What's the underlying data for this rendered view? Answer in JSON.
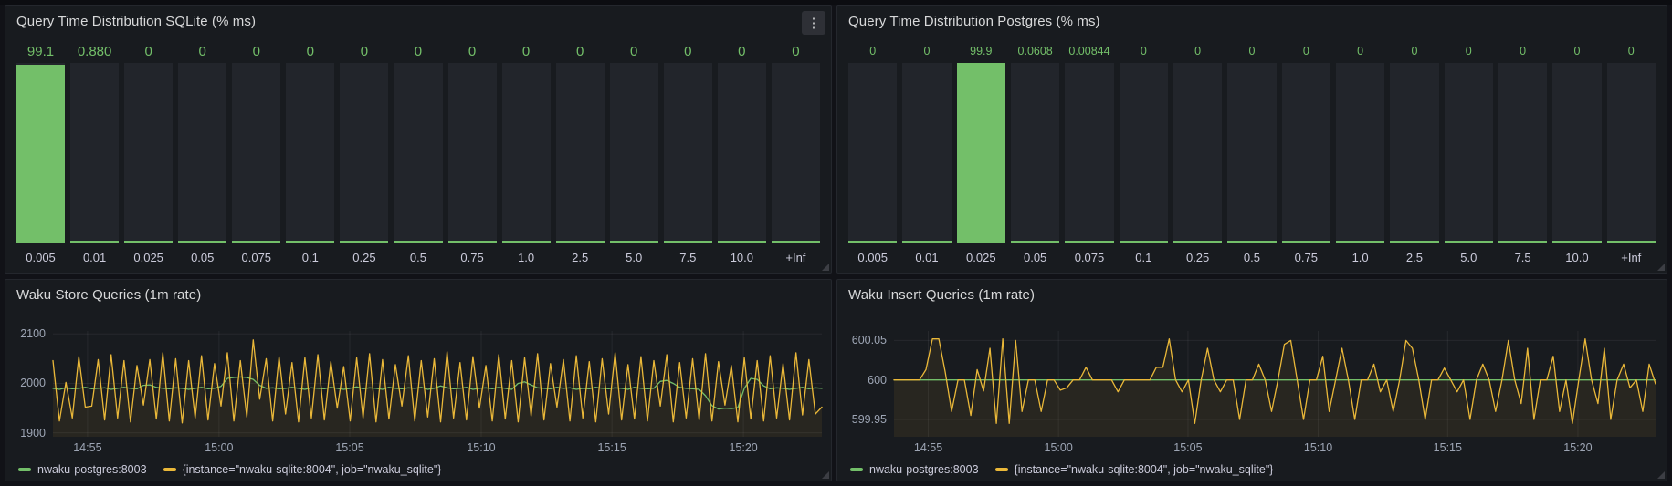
{
  "app": {
    "kebab_icon": "⋮"
  },
  "colors": {
    "page_bg": "#111217",
    "panel_bg": "#181b1f",
    "green": "#73bf69",
    "yellow": "#eab839",
    "track": "#22252b",
    "grid": "rgba(204,204,220,0.08)",
    "value_text": "#73bf69",
    "title_text": "#d8d9da",
    "tick_text": "#9da5b4"
  },
  "legend": {
    "items": [
      {
        "label": "nwaku-postgres:8003",
        "color": "#73bf69"
      },
      {
        "label": "{instance=\"nwaku-sqlite:8004\", job=\"nwaku_sqlite\"}",
        "color": "#eab839"
      }
    ]
  },
  "chart_data": [
    {
      "type": "bar",
      "title": "Query Time Distribution SQLite (% ms)",
      "xlabel": "",
      "ylabel": "",
      "ylim": [
        0,
        100
      ],
      "value_font_px": 15,
      "categories": [
        "0.005",
        "0.01",
        "0.025",
        "0.05",
        "0.075",
        "0.1",
        "0.25",
        "0.5",
        "0.75",
        "1.0",
        "2.5",
        "5.0",
        "7.5",
        "10.0",
        "+Inf"
      ],
      "value_labels": [
        "99.1",
        "0.880",
        "0",
        "0",
        "0",
        "0",
        "0",
        "0",
        "0",
        "0",
        "0",
        "0",
        "0",
        "0",
        "0"
      ],
      "values": [
        99.1,
        0.88,
        0,
        0,
        0,
        0,
        0,
        0,
        0,
        0,
        0,
        0,
        0,
        0,
        0
      ]
    },
    {
      "type": "bar",
      "title": "Query Time Distribution Postgres (% ms)",
      "xlabel": "",
      "ylabel": "",
      "ylim": [
        0,
        100
      ],
      "value_font_px": 12.5,
      "categories": [
        "0.005",
        "0.01",
        "0.025",
        "0.05",
        "0.075",
        "0.1",
        "0.25",
        "0.5",
        "0.75",
        "1.0",
        "2.5",
        "5.0",
        "7.5",
        "10.0",
        "+Inf"
      ],
      "value_labels": [
        "0",
        "0",
        "99.9",
        "0.0608",
        "0.00844",
        "0",
        "0",
        "0",
        "0",
        "0",
        "0",
        "0",
        "0",
        "0",
        "0"
      ],
      "values": [
        0,
        0,
        99.9,
        0.0608,
        0.00844,
        0,
        0,
        0,
        0,
        0,
        0,
        0,
        0,
        0,
        0
      ]
    },
    {
      "type": "line",
      "title": "Waku Store Queries (1m rate)",
      "xlabel": "",
      "ylabel": "",
      "grid": true,
      "legend_position": "bottom",
      "ylim": [
        1892,
        2106
      ],
      "yticks": [
        {
          "v": 1900,
          "l": "1900"
        },
        {
          "v": 2000,
          "l": "2000"
        },
        {
          "v": 2100,
          "l": "2100"
        }
      ],
      "xticks": [
        {
          "f": 0.045,
          "l": "14:55"
        },
        {
          "f": 0.216,
          "l": "15:00"
        },
        {
          "f": 0.386,
          "l": "15:05"
        },
        {
          "f": 0.557,
          "l": "15:10"
        },
        {
          "f": 0.727,
          "l": "15:15"
        },
        {
          "f": 0.898,
          "l": "15:20"
        }
      ],
      "series": [
        {
          "name": "nwaku-postgres:8003",
          "color": "#73bf69",
          "fill_opacity": 0,
          "values": [
            1990,
            1988,
            1991,
            1989,
            1990,
            1992,
            1989,
            1990,
            1991,
            1988,
            1990,
            1992,
            1990,
            1989,
            1996,
            1997,
            1992,
            1990,
            1989,
            1991,
            1990,
            1988,
            1990,
            1992,
            1989,
            1990,
            1994,
            2010,
            2012,
            2013,
            2012,
            2008,
            1996,
            1990,
            1991,
            1989,
            1990,
            1992,
            1990,
            1988,
            1991,
            1990,
            1989,
            1992,
            1990,
            1988,
            1990,
            1993,
            1989,
            1991,
            1990,
            1988,
            1992,
            1990,
            1989,
            1991,
            1990,
            1992,
            1988,
            1990,
            1995,
            1991,
            1989,
            1990,
            1992,
            1988,
            1990,
            1991,
            1989,
            1992,
            1990,
            1988,
            2000,
            2003,
            1997,
            1991,
            1990,
            1989,
            1992,
            1990,
            1991,
            1988,
            1990,
            1989,
            1992,
            1990,
            1989,
            1991,
            1990,
            1988,
            1992,
            1990,
            1989,
            1990,
            2004,
            2006,
            2000,
            1992,
            1990,
            1989,
            1988,
            1975,
            1955,
            1948,
            1950,
            1949,
            1951,
            1990,
            2010,
            2008,
            1995,
            1989,
            1991,
            1990,
            1988,
            1990,
            1992,
            1989,
            1991,
            1990
          ]
        },
        {
          "name": "{instance=\"nwaku-sqlite:8004\", job=\"nwaku_sqlite\"}",
          "color": "#eab839",
          "fill_opacity": 0.08,
          "values": [
            2046,
            1924,
            2002,
            1930,
            2054,
            1952,
            1954,
            2048,
            1926,
            2058,
            1930,
            2046,
            1922,
            2036,
            1956,
            2048,
            1928,
            2062,
            1924,
            2050,
            1920,
            2046,
            1930,
            2056,
            1926,
            2040,
            1954,
            2062,
            1924,
            2046,
            1932,
            2088,
            1968,
            2050,
            1924,
            2054,
            1938,
            2042,
            1922,
            2052,
            1930,
            2058,
            1926,
            2044,
            1950,
            2034,
            1924,
            2052,
            1930,
            2060,
            1922,
            2048,
            1928,
            2038,
            1954,
            2056,
            1924,
            2046,
            1932,
            2050,
            1922,
            2064,
            1930,
            2042,
            1926,
            2054,
            1950,
            2036,
            1924,
            2058,
            1928,
            2046,
            1922,
            2052,
            1934,
            2060,
            1926,
            2040,
            1952,
            2048,
            1924,
            2056,
            1930,
            2044,
            1922,
            2050,
            1938,
            2062,
            1926,
            2038,
            1928,
            2054,
            1924,
            2046,
            1954,
            2058,
            1922,
            2042,
            1930,
            2050,
            1926,
            2060,
            1924,
            2044,
            1956,
            2036,
            1922,
            2052,
            1928,
            2046,
            1924,
            2056,
            1930,
            2040,
            1926,
            2062,
            1936,
            2048,
            1938,
            1952
          ]
        }
      ]
    },
    {
      "type": "line",
      "title": "Waku Insert Queries (1m rate)",
      "xlabel": "",
      "ylabel": "",
      "grid": true,
      "legend_position": "bottom",
      "ylim": [
        599.928,
        600.062
      ],
      "yticks": [
        {
          "v": 599.95,
          "l": "599.95"
        },
        {
          "v": 600,
          "l": "600"
        },
        {
          "v": 600.05,
          "l": "600.05"
        }
      ],
      "xticks": [
        {
          "f": 0.045,
          "l": "14:55"
        },
        {
          "f": 0.216,
          "l": "15:00"
        },
        {
          "f": 0.386,
          "l": "15:05"
        },
        {
          "f": 0.557,
          "l": "15:10"
        },
        {
          "f": 0.727,
          "l": "15:15"
        },
        {
          "f": 0.898,
          "l": "15:20"
        }
      ],
      "series": [
        {
          "name": "nwaku-postgres:8003",
          "color": "#73bf69",
          "fill_opacity": 0,
          "x": [
            0,
            1
          ],
          "values": [
            600,
            600
          ]
        },
        {
          "name": "{instance=\"nwaku-sqlite:8004\", job=\"nwaku_sqlite\"}",
          "color": "#eab839",
          "fill_opacity": 0.08,
          "values": [
            600,
            600,
            600,
            600,
            600,
            600.013,
            600.052,
            600.052,
            600.01,
            599.96,
            600,
            600,
            599.955,
            600.013,
            599.986,
            600.04,
            599.945,
            600.052,
            599.945,
            600.05,
            599.96,
            600,
            600,
            599.96,
            600,
            600,
            599.987,
            599.99,
            600,
            600,
            600.016,
            600,
            600,
            600,
            600,
            599.985,
            600,
            600,
            600,
            600,
            600,
            600.016,
            600.016,
            600.052,
            600,
            599.985,
            600,
            599.945,
            600,
            600.04,
            600,
            599.985,
            600,
            600,
            599.95,
            600,
            600,
            600.02,
            600,
            599.96,
            600,
            600.045,
            600.05,
            600,
            599.95,
            600,
            600,
            600.03,
            599.96,
            600,
            600.04,
            600,
            599.95,
            600,
            600,
            600.02,
            599.985,
            600,
            599.96,
            600,
            600.05,
            600.04,
            600,
            599.95,
            600,
            600,
            600.015,
            600,
            599.985,
            600,
            599.95,
            600,
            600.02,
            600,
            599.96,
            600,
            600.05,
            600,
            599.97,
            600.04,
            599.95,
            600,
            600,
            600.03,
            599.96,
            600,
            599.945,
            600,
            600.052,
            600,
            599.97,
            600.04,
            599.95,
            600,
            600.02,
            599.99,
            600,
            599.96,
            600.02,
            599.995
          ]
        }
      ]
    }
  ]
}
